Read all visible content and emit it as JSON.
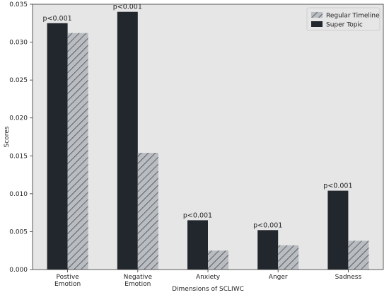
{
  "chart_data": {
    "type": "bar",
    "xlabel": "Dimensions of SCLIWC",
    "ylabel": "Scores",
    "ylim": [
      0,
      0.035
    ],
    "yticks": [
      0.0,
      0.005,
      0.01,
      0.015,
      0.02,
      0.025,
      0.03,
      0.035
    ],
    "ytick_labels": [
      "0.000",
      "0.005",
      "0.010",
      "0.015",
      "0.020",
      "0.025",
      "0.030",
      "0.035"
    ],
    "categories": [
      [
        "Postive",
        "Emotion"
      ],
      [
        "Negative",
        "Emotion"
      ],
      [
        "Anxiety"
      ],
      [
        "Anger"
      ],
      [
        "Sadness"
      ]
    ],
    "series": [
      {
        "name": "Super Topic",
        "values": [
          0.0325,
          0.034,
          0.0065,
          0.0052,
          0.0104
        ],
        "color": "#22272d",
        "pattern": "solid"
      },
      {
        "name": "Regular Timeline",
        "values": [
          0.0312,
          0.0154,
          0.0025,
          0.0032,
          0.0038
        ],
        "color": "#b9bcc0",
        "pattern": "hatch"
      }
    ],
    "annotations": [
      "p<0.001",
      "p<0.001",
      "p<0.001",
      "p<0.001",
      "p<0.001"
    ],
    "legend": {
      "position": "top-right",
      "entries": [
        "Regular Timeline",
        "Super Topic"
      ]
    },
    "background": "#e6e6e6",
    "grid": false
  }
}
